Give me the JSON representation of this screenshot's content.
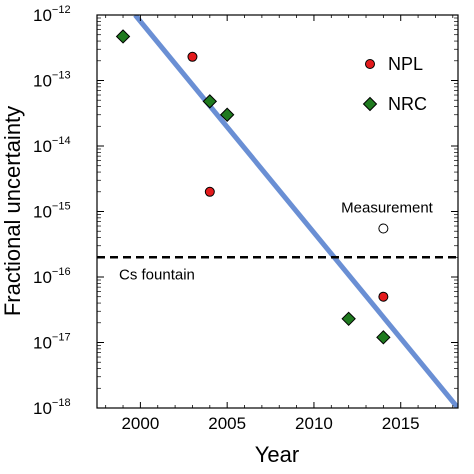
{
  "chart_data": {
    "type": "scatter",
    "xlabel": "Year",
    "ylabel": "Fractional uncertainty",
    "xlim": [
      1997.5,
      2018.3
    ],
    "ylim_log10": [
      -18,
      -12
    ],
    "yscale": "log",
    "x_ticks": [
      2000,
      2005,
      2010,
      2015
    ],
    "y_ticks": [
      {
        "base": "10",
        "exp": "−12",
        "value_log10": -12
      },
      {
        "base": "10",
        "exp": "−13",
        "value_log10": -13
      },
      {
        "base": "10",
        "exp": "−14",
        "value_log10": -14
      },
      {
        "base": "10",
        "exp": "−15",
        "value_log10": -15
      },
      {
        "base": "10",
        "exp": "−16",
        "value_log10": -16
      },
      {
        "base": "10",
        "exp": "−17",
        "value_log10": -17
      },
      {
        "base": "10",
        "exp": "−18",
        "value_log10": -18
      }
    ],
    "series": [
      {
        "name": "NPL",
        "marker": "circle",
        "color": "#e31a1c",
        "points": [
          {
            "x": 2003,
            "y": 2.3e-13
          },
          {
            "x": 2004,
            "y": 2e-15
          },
          {
            "x": 2014,
            "y": 5e-17
          }
        ]
      },
      {
        "name": "NRC",
        "marker": "diamond",
        "color": "#1f7a1f",
        "points": [
          {
            "x": 1999,
            "y": 4.7e-13
          },
          {
            "x": 2004,
            "y": 4.8e-14
          },
          {
            "x": 2005,
            "y": 3e-14
          },
          {
            "x": 2012,
            "y": 2.3e-17
          },
          {
            "x": 2014,
            "y": 1.2e-17
          }
        ]
      }
    ],
    "measurement": {
      "label": "Measurement",
      "x": 2014,
      "y": 5.5e-16,
      "marker": "open-circle"
    },
    "trend_line": {
      "color": "#6a8fd4",
      "points": [
        {
          "x": 1999.7,
          "y": 1e-12
        },
        {
          "x": 2018.3,
          "y": 1e-18
        }
      ]
    },
    "reference_line": {
      "label": "Cs fountain",
      "y": 2e-16,
      "style": "dashed"
    },
    "legend": {
      "position": "top-right"
    },
    "grid": false
  }
}
